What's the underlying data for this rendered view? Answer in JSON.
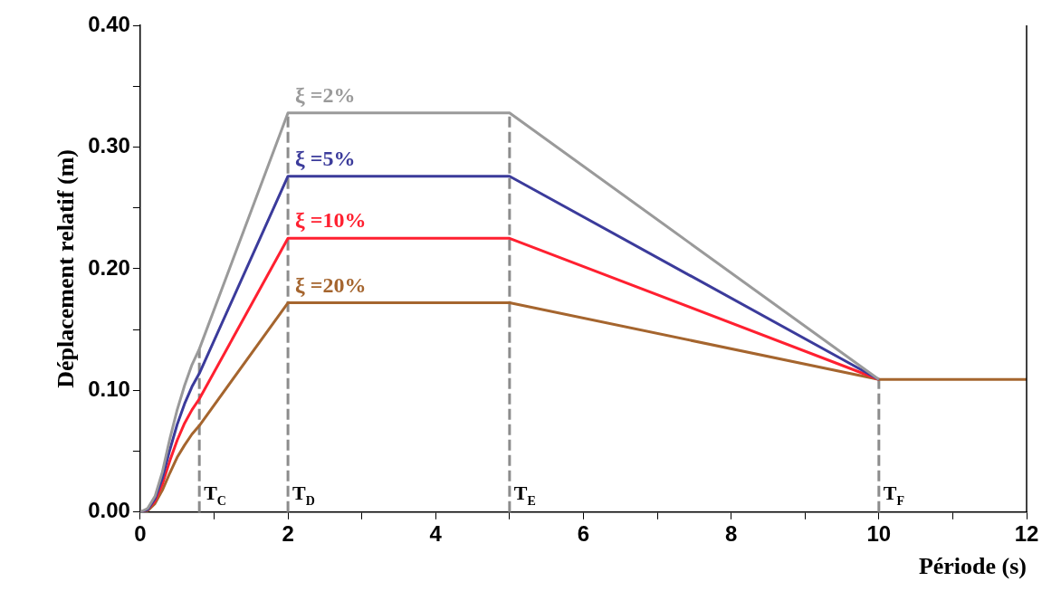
{
  "chart_data": {
    "type": "line",
    "xlabel": "Période (s)",
    "ylabel": "Déplacement relatif (m)",
    "x": [
      0,
      0.1,
      0.2,
      0.3,
      0.4,
      0.5,
      0.6,
      0.7,
      0.8,
      2,
      5,
      10,
      12
    ],
    "series": [
      {
        "name": "ξ =2%",
        "color": "#9a9a9a",
        "values": [
          0,
          0.003,
          0.013,
          0.033,
          0.06,
          0.084,
          0.104,
          0.121,
          0.134,
          0.328,
          0.328,
          0.109,
          null
        ]
      },
      {
        "name": "ξ =5%",
        "color": "#3b3b9b",
        "values": [
          0,
          0.002,
          0.011,
          0.028,
          0.051,
          0.072,
          0.089,
          0.103,
          0.114,
          0.276,
          0.276,
          0.109,
          null
        ]
      },
      {
        "name": "ξ =10%",
        "color": "#ff2030",
        "values": [
          0,
          0.002,
          0.009,
          0.023,
          0.042,
          0.059,
          0.073,
          0.084,
          0.093,
          0.225,
          0.225,
          0.109,
          null
        ]
      },
      {
        "name": "ξ =20%",
        "color": "#a5652e",
        "values": [
          0,
          0.001,
          0.007,
          0.018,
          0.032,
          0.045,
          0.055,
          0.064,
          0.071,
          0.172,
          0.172,
          0.109,
          0.109
        ]
      }
    ],
    "xlim": [
      0,
      12
    ],
    "ylim": [
      0,
      0.4
    ],
    "xticks": [
      0,
      {
        "value": 1,
        "label": null
      },
      2,
      {
        "value": 3,
        "label": null
      },
      4,
      {
        "value": 5,
        "label": null
      },
      6,
      {
        "value": 7,
        "label": null
      },
      8,
      {
        "value": 9,
        "label": null
      },
      10,
      {
        "value": 11,
        "label": null
      },
      12
    ],
    "yticks": [
      {
        "value": 0,
        "label": "0.00"
      },
      {
        "value": 0.05,
        "label": null
      },
      {
        "value": 0.1,
        "label": "0.10"
      },
      {
        "value": 0.15,
        "label": null
      },
      {
        "value": 0.2,
        "label": "0.20"
      },
      {
        "value": 0.25,
        "label": null
      },
      {
        "value": 0.3,
        "label": "0.30"
      },
      {
        "value": 0.35,
        "label": null
      },
      {
        "value": 0.4,
        "label": "0.40"
      }
    ],
    "ref_lines": [
      {
        "axis": "x",
        "value": 0.8,
        "label": "T$_{C}$",
        "color": "#8c8c8c",
        "line_style": "dashed"
      },
      {
        "axis": "x",
        "value": 2,
        "label": "T$_{D}$",
        "color": "#8c8c8c",
        "line_style": "dashed"
      },
      {
        "axis": "x",
        "value": 5,
        "label": "T$_{E}$",
        "color": "#8c8c8c",
        "line_style": "dashed"
      },
      {
        "axis": "x",
        "value": 10,
        "label": "T$_{F}$",
        "color": "#8c8c8c",
        "line_style": "dashed"
      }
    ],
    "grid": false,
    "legend": false,
    "marker": "none",
    "line_style": "solid"
  }
}
